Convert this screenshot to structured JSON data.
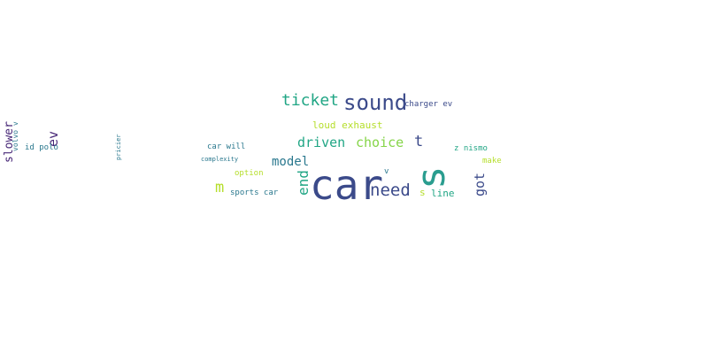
{
  "word_cloud": {
    "words": [
      {
        "text": "car",
        "color": "#3b4a8a"
      },
      {
        "text": "s",
        "color": "#2a9d8f"
      },
      {
        "text": "sound",
        "color": "#3b4a8a"
      },
      {
        "text": "ticket",
        "color": "#21a685"
      },
      {
        "text": "need",
        "color": "#3b4a8a"
      },
      {
        "text": "driven",
        "color": "#21a685"
      },
      {
        "text": "choice",
        "color": "#86d549"
      },
      {
        "text": "model",
        "color": "#2a788e"
      },
      {
        "text": "end",
        "color": "#21a685"
      },
      {
        "text": "m",
        "color": "#b5de2b"
      },
      {
        "text": "t",
        "color": "#3b4a8a"
      },
      {
        "text": "got",
        "color": "#3b4a8a"
      },
      {
        "text": "loud exhaust",
        "color": "#b5de2b"
      },
      {
        "text": "charger ev",
        "color": "#3b4a8a"
      },
      {
        "text": "z nismo",
        "color": "#21a685"
      },
      {
        "text": "line",
        "color": "#21a685"
      },
      {
        "text": "make",
        "color": "#b5de2b"
      },
      {
        "text": "car will",
        "color": "#2a788e"
      },
      {
        "text": "option",
        "color": "#b5de2b"
      },
      {
        "text": "sports car",
        "color": "#2a788e"
      },
      {
        "text": "ev",
        "color": "#482878"
      },
      {
        "text": "slower",
        "color": "#482878"
      },
      {
        "text": "id polo",
        "color": "#2a788e"
      },
      {
        "text": "volvo v",
        "color": "#2a788e"
      },
      {
        "text": "pricier",
        "color": "#2a788e"
      },
      {
        "text": "complexity",
        "color": "#2a788e"
      },
      {
        "text": "v",
        "color": "#2a788e"
      },
      {
        "text": "s",
        "color": "#b5de2b"
      }
    ]
  }
}
